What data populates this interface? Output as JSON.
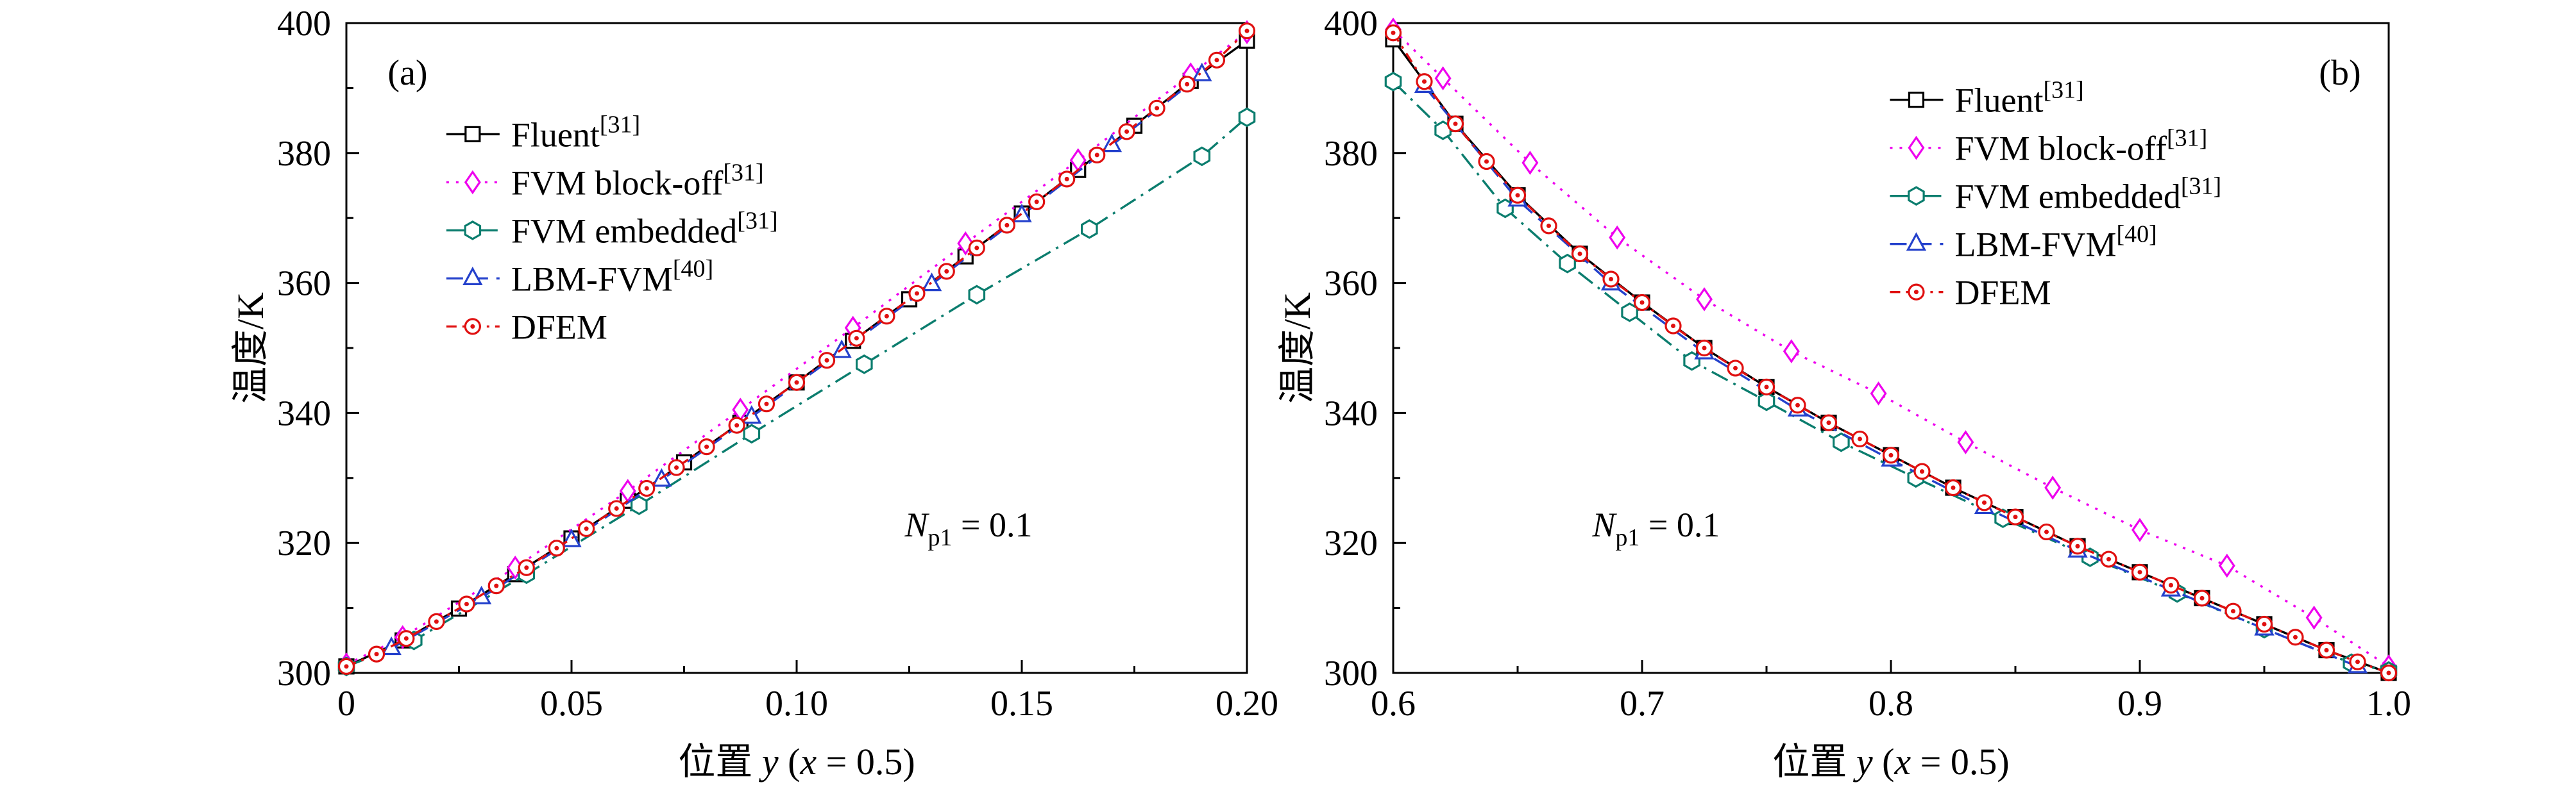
{
  "figure": {
    "background": "#ffffff"
  },
  "chart_data": [
    {
      "id": "panel-a",
      "type": "line",
      "panel_label": "(a)",
      "panel_label_pos": [
        0.068,
        0.075
      ],
      "ylabel": "温度/K",
      "xlabel_parts": [
        {
          "t": "位置 ",
          "i": false
        },
        {
          "t": "y",
          "i": true
        },
        {
          "t": " (",
          "i": false
        },
        {
          "t": "x",
          "i": true
        },
        {
          "t": " = 0.5)",
          "i": false
        }
      ],
      "xlim": [
        0,
        0.2
      ],
      "ylim": [
        300,
        400
      ],
      "x_ticks": [
        {
          "v": 0,
          "label": "0"
        },
        {
          "v": 0.05,
          "label": "0.05"
        },
        {
          "v": 0.1,
          "label": "0.10"
        },
        {
          "v": 0.15,
          "label": "0.15"
        },
        {
          "v": 0.2,
          "label": "0.20"
        }
      ],
      "x_minor": [
        0.025,
        0.075,
        0.125,
        0.175
      ],
      "y_ticks": [
        {
          "v": 300,
          "label": "300"
        },
        {
          "v": 320,
          "label": "320"
        },
        {
          "v": 340,
          "label": "340"
        },
        {
          "v": 360,
          "label": "360"
        },
        {
          "v": 380,
          "label": "380"
        },
        {
          "v": 400,
          "label": "400"
        }
      ],
      "y_minor": [
        310,
        330,
        350,
        370,
        390
      ],
      "grid": false,
      "legend_pos": [
        0.111,
        0.171
      ],
      "annotation": {
        "pre": "N",
        "sub": "p1",
        "post": " = 0.1",
        "pos": [
          0.62,
          0.79
        ]
      },
      "series": [
        {
          "sid": "fluent",
          "name": {
            "main": "Fluent",
            "sup": "[31]"
          },
          "color": "#000000",
          "marker": "square",
          "line": "solid",
          "x": [
            0,
            0.0125,
            0.025,
            0.0375,
            0.05,
            0.0625,
            0.075,
            0.0875,
            0.1,
            0.1125,
            0.125,
            0.1375,
            0.15,
            0.1625,
            0.175,
            0.1875,
            0.2
          ],
          "y": [
            301.0,
            305.0,
            309.9,
            315.2,
            320.7,
            326.5,
            332.4,
            338.5,
            344.7,
            351.1,
            357.5,
            364.1,
            370.7,
            377.4,
            384.2,
            391.1,
            397.3
          ]
        },
        {
          "sid": "fvm-block-off",
          "name": {
            "main": "FVM block-off",
            "sup": "[31]"
          },
          "color": "#ee00ee",
          "marker": "diamond",
          "line": "dotted",
          "x": [
            0,
            0.0125,
            0.0375,
            0.0625,
            0.0875,
            0.1125,
            0.1375,
            0.1625,
            0.1875,
            0.2
          ],
          "y": [
            301.3,
            305.5,
            316.2,
            328.0,
            340.5,
            353.1,
            366.1,
            378.9,
            392.1,
            398.6
          ]
        },
        {
          "sid": "fvm-embedded",
          "name": {
            "main": "FVM embedded",
            "sup": "[31]"
          },
          "color": "#0b7d6e",
          "marker": "hexagon",
          "line": "dashdot",
          "x": [
            0,
            0.015,
            0.04,
            0.065,
            0.09,
            0.115,
            0.14,
            0.165,
            0.19,
            0.2
          ],
          "y": [
            301.0,
            305.0,
            315.2,
            325.8,
            336.8,
            347.5,
            358.2,
            368.3,
            379.5,
            385.5
          ]
        },
        {
          "sid": "lbm-fvm",
          "name": {
            "main": "LBM-FVM",
            "sup": "[40]"
          },
          "color": "#2441cc",
          "marker": "triangle",
          "line": "dashed",
          "x": [
            0.01,
            0.03,
            0.05,
            0.07,
            0.09,
            0.11,
            0.13,
            0.15,
            0.17,
            0.19
          ],
          "y": [
            303.8,
            311.6,
            320.4,
            329.7,
            339.4,
            349.5,
            359.8,
            370.4,
            381.2,
            392.1
          ]
        },
        {
          "sid": "dfem",
          "name": {
            "main": "DFEM",
            "sup": ""
          },
          "color": "#e01010",
          "marker": "circledot",
          "line": "dashdot2",
          "x": [
            0,
            0.0067,
            0.0133,
            0.02,
            0.0267,
            0.0333,
            0.04,
            0.0467,
            0.0533,
            0.06,
            0.0667,
            0.0733,
            0.08,
            0.0867,
            0.0933,
            0.1,
            0.1067,
            0.1133,
            0.12,
            0.1267,
            0.1333,
            0.14,
            0.1467,
            0.1533,
            0.16,
            0.1667,
            0.1733,
            0.18,
            0.1867,
            0.1933,
            0.2
          ],
          "y": [
            301.0,
            302.9,
            305.3,
            307.9,
            310.6,
            313.4,
            316.2,
            319.2,
            322.2,
            325.3,
            328.4,
            331.6,
            334.8,
            338.1,
            341.4,
            344.7,
            348.1,
            351.5,
            354.9,
            358.4,
            361.8,
            365.4,
            368.9,
            372.5,
            376.0,
            379.7,
            383.3,
            386.9,
            390.6,
            394.3,
            398.8
          ]
        }
      ]
    },
    {
      "id": "panel-b",
      "type": "line",
      "panel_label": "(b)",
      "panel_label_pos": [
        0.951,
        0.075
      ],
      "ylabel": "温度/K",
      "xlabel_parts": [
        {
          "t": "位置 ",
          "i": false
        },
        {
          "t": "y",
          "i": true
        },
        {
          "t": " (",
          "i": false
        },
        {
          "t": "x",
          "i": true
        },
        {
          "t": " = 0.5)",
          "i": false
        }
      ],
      "xlim": [
        0.6,
        1.0
      ],
      "ylim": [
        300,
        400
      ],
      "x_ticks": [
        {
          "v": 0.6,
          "label": "0.6"
        },
        {
          "v": 0.7,
          "label": "0.7"
        },
        {
          "v": 0.8,
          "label": "0.8"
        },
        {
          "v": 0.9,
          "label": "0.9"
        },
        {
          "v": 1.0,
          "label": "1.0"
        }
      ],
      "x_minor": [
        0.65,
        0.75,
        0.85,
        0.95
      ],
      "y_ticks": [
        {
          "v": 300,
          "label": "300"
        },
        {
          "v": 320,
          "label": "320"
        },
        {
          "v": 340,
          "label": "340"
        },
        {
          "v": 360,
          "label": "360"
        },
        {
          "v": 380,
          "label": "380"
        },
        {
          "v": 400,
          "label": "400"
        }
      ],
      "y_minor": [
        310,
        330,
        350,
        370,
        390
      ],
      "grid": false,
      "legend_pos": [
        0.499,
        0.118
      ],
      "annotation": {
        "pre": "N",
        "sub": "p1",
        "post": " = 0.1",
        "pos": [
          0.2,
          0.79
        ]
      },
      "series": [
        {
          "sid": "fluent",
          "name": {
            "main": "Fluent",
            "sup": "[31]"
          },
          "color": "#000000",
          "marker": "square",
          "line": "solid",
          "x": [
            0.6,
            0.625,
            0.65,
            0.675,
            0.7,
            0.725,
            0.75,
            0.775,
            0.8,
            0.825,
            0.85,
            0.875,
            0.9,
            0.925,
            0.95,
            0.975,
            1.0
          ],
          "y": [
            397.5,
            384.5,
            373.5,
            364.5,
            357.0,
            350.0,
            344.0,
            338.5,
            333.5,
            328.5,
            324.0,
            319.5,
            315.5,
            311.5,
            307.5,
            303.5,
            300.0
          ]
        },
        {
          "sid": "fvm-block-off",
          "name": {
            "main": "FVM block-off",
            "sup": "[31]"
          },
          "color": "#ee00ee",
          "marker": "diamond",
          "line": "dotted",
          "x": [
            0.6,
            0.62,
            0.655,
            0.69,
            0.725,
            0.76,
            0.795,
            0.83,
            0.865,
            0.9,
            0.935,
            0.97,
            1.0
          ],
          "y": [
            399.0,
            391.5,
            378.5,
            367.0,
            357.5,
            349.5,
            343.0,
            335.5,
            328.5,
            322.0,
            316.5,
            308.5,
            301.0
          ]
        },
        {
          "sid": "fvm-embedded",
          "name": {
            "main": "FVM embedded",
            "sup": "[31]"
          },
          "color": "#0b7d6e",
          "marker": "hexagon",
          "line": "dashdot",
          "x": [
            0.6,
            0.62,
            0.645,
            0.67,
            0.695,
            0.72,
            0.75,
            0.78,
            0.81,
            0.845,
            0.88,
            0.915,
            0.95,
            0.985,
            1.0
          ],
          "y": [
            391.0,
            383.5,
            371.5,
            363.0,
            355.5,
            348.0,
            341.8,
            335.5,
            330.0,
            323.8,
            317.8,
            312.3,
            306.8,
            301.5,
            300.3
          ]
        },
        {
          "sid": "lbm-fvm",
          "name": {
            "main": "LBM-FVM",
            "sup": "[40]"
          },
          "color": "#2441cc",
          "marker": "triangle",
          "line": "dashed",
          "x": [
            0.6125,
            0.65,
            0.6875,
            0.725,
            0.7625,
            0.8,
            0.8375,
            0.875,
            0.9125,
            0.95,
            0.9875
          ],
          "y": [
            390.3,
            372.8,
            359.9,
            349.3,
            340.5,
            332.8,
            325.5,
            318.8,
            312.8,
            306.8,
            301.0
          ]
        },
        {
          "sid": "dfem",
          "name": {
            "main": "DFEM",
            "sup": ""
          },
          "color": "#e01010",
          "marker": "circledot",
          "line": "dashdot2",
          "x": [
            0.6,
            0.6125,
            0.625,
            0.6375,
            0.65,
            0.6625,
            0.675,
            0.6875,
            0.7,
            0.7125,
            0.725,
            0.7375,
            0.75,
            0.7625,
            0.775,
            0.7875,
            0.8,
            0.8125,
            0.825,
            0.8375,
            0.85,
            0.8625,
            0.875,
            0.8875,
            0.9,
            0.9125,
            0.925,
            0.9375,
            0.95,
            0.9625,
            0.975,
            0.9875,
            1.0
          ],
          "y": [
            398.5,
            391.0,
            384.5,
            378.7,
            373.5,
            368.8,
            364.5,
            360.6,
            357.0,
            353.4,
            350.0,
            346.9,
            344.0,
            341.2,
            338.5,
            336.0,
            333.5,
            331.0,
            328.5,
            326.2,
            324.0,
            321.7,
            319.5,
            317.5,
            315.5,
            313.5,
            311.5,
            309.5,
            307.5,
            305.5,
            303.5,
            301.7,
            300.0
          ]
        }
      ]
    }
  ]
}
